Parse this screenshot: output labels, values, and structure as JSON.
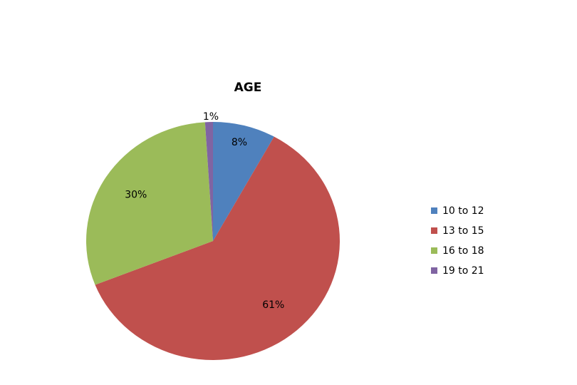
{
  "chart_data": {
    "type": "pie",
    "title": "AGE",
    "categories": [
      "10 to 12",
      "13 to 15",
      "16 to 18",
      "19 to 21"
    ],
    "values": [
      8,
      61,
      30,
      1
    ],
    "value_labels": [
      "8%",
      "61%",
      "30%",
      "1%"
    ],
    "colors": [
      "#4F81BD",
      "#C0504D",
      "#9BBB59",
      "#8064A2"
    ],
    "legend_position": "right",
    "start_angle_deg": 0,
    "direction": "clockwise"
  }
}
